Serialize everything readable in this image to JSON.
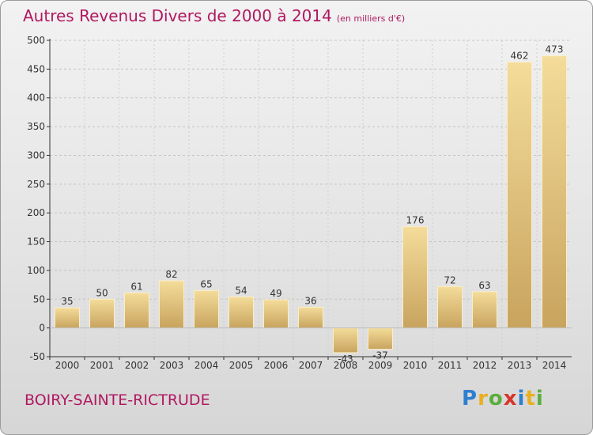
{
  "title": "Autres Revenus Divers de 2000 à 2014",
  "unit": "(en milliers d'€)",
  "place": "BOIRY-SAINTE-RICTRUDE",
  "logo": {
    "letters": [
      {
        "char": "P",
        "color": "#2e7fd0"
      },
      {
        "char": "r",
        "color": "#e8b020"
      },
      {
        "char": "o",
        "color": "#5aae3c"
      },
      {
        "char": "x",
        "color": "#d8352a"
      },
      {
        "char": "i",
        "color": "#2e7fd0"
      },
      {
        "char": "t",
        "color": "#e8b020"
      },
      {
        "char": "i",
        "color": "#5aae3c"
      }
    ]
  },
  "colors": {
    "title": "#b01860",
    "bar_light": "#f4dc9a",
    "bar_dark": "#c8a45e",
    "axis": "#333333"
  },
  "chart_data": {
    "type": "bar",
    "title": "Autres Revenus Divers de 2000 à 2014",
    "xlabel": "",
    "ylabel": "",
    "categories": [
      "2000",
      "2001",
      "2002",
      "2003",
      "2004",
      "2005",
      "2006",
      "2007",
      "2008",
      "2009",
      "2010",
      "2011",
      "2012",
      "2013",
      "2014"
    ],
    "values": [
      35,
      50,
      61,
      82,
      65,
      54,
      49,
      36,
      -43,
      -37,
      176,
      72,
      63,
      462,
      473
    ],
    "labels": [
      "35",
      "50",
      "61",
      "82",
      "65",
      "54",
      "49",
      "36",
      "-43",
      "-37",
      "176",
      "72",
      "63",
      "462",
      "473"
    ],
    "ylim": [
      -50,
      500
    ],
    "yticks": [
      -50,
      0,
      50,
      100,
      150,
      200,
      250,
      300,
      350,
      400,
      450,
      500
    ],
    "grid": true
  }
}
